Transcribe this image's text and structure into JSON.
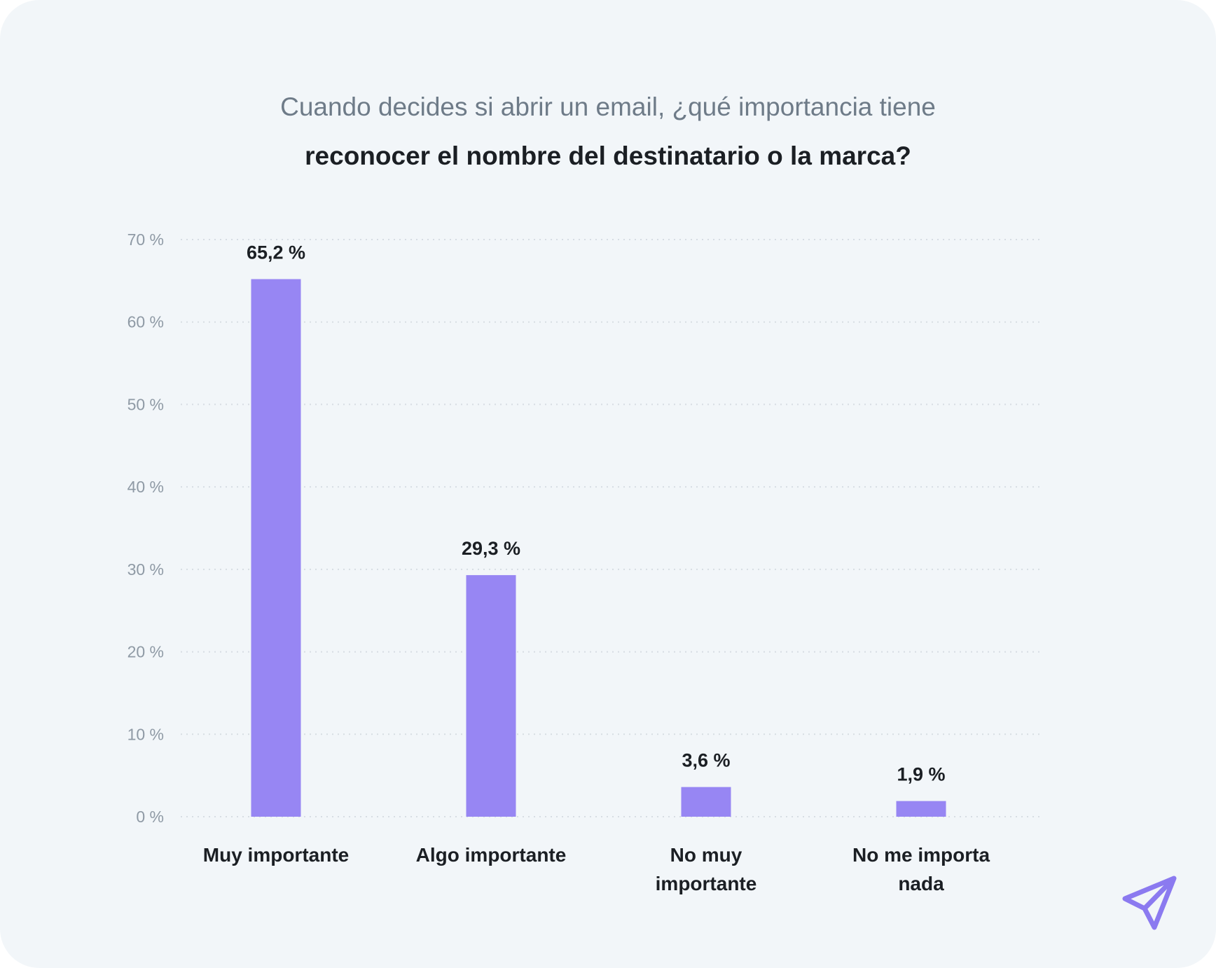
{
  "header": {
    "question_line_1": "Cuando decides si abrir un email, ¿qué importancia tiene",
    "question_line_2": "reconocer el nombre del destinatario o la marca?"
  },
  "colors": {
    "background": "#f2f6f9",
    "bar": "#9786f3",
    "text_dark": "#1b1f24",
    "text_muted": "#6e7b88",
    "logo": "#8b7af0"
  },
  "logo": {
    "icon": "paper-plane-icon"
  },
  "chart_data": {
    "type": "bar",
    "title": "",
    "xlabel": "",
    "ylabel": "",
    "ylim": [
      0,
      70
    ],
    "y_ticks": [
      0,
      10,
      20,
      30,
      40,
      50,
      60,
      70
    ],
    "y_tick_labels": [
      "0 %",
      "10 %",
      "20 %",
      "30 %",
      "40 %",
      "50 %",
      "60 %",
      "70 %"
    ],
    "grid": true,
    "legend": "none",
    "categories": [
      [
        "Muy importante"
      ],
      [
        "Algo importante"
      ],
      [
        "No muy",
        "importante"
      ],
      [
        "No me importa",
        "nada"
      ]
    ],
    "values": [
      65.2,
      29.3,
      3.6,
      1.9
    ],
    "value_labels": [
      "65,2 %",
      "29,3 %",
      "3,6 %",
      "1,9 %"
    ]
  }
}
